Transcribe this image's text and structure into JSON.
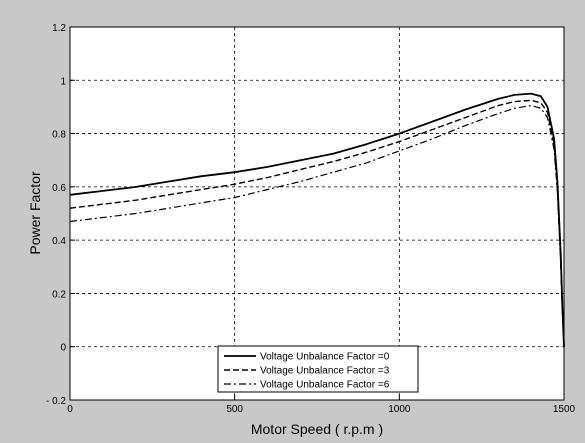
{
  "chart_data": {
    "type": "line",
    "title": "",
    "xlabel": "Motor Speed ( r.p.m )",
    "ylabel": "Power Factor",
    "xlim": [
      0,
      1500
    ],
    "ylim": [
      -0.2,
      1.2
    ],
    "xticks": [
      0,
      500,
      1000,
      1500
    ],
    "yticks": [
      -0.2,
      0,
      0.2,
      0.4,
      0.6,
      0.8,
      1,
      1.2
    ],
    "xtick_labels": [
      "0",
      "500",
      "1000",
      "1500"
    ],
    "ytick_labels": [
      "- 0.2",
      "0",
      "0.2",
      "0.4",
      "0.6",
      "0.8",
      "1",
      "1.2"
    ],
    "grid": true,
    "legend_position": "bottom-center",
    "series": [
      {
        "name": "Voltage Unbalance Factor =0",
        "line_style": "solid",
        "x": [
          0,
          100,
          200,
          300,
          400,
          500,
          600,
          700,
          800,
          900,
          1000,
          1100,
          1200,
          1300,
          1350,
          1400,
          1430,
          1450,
          1470,
          1480,
          1490,
          1495,
          1500
        ],
        "y": [
          0.57,
          0.585,
          0.6,
          0.62,
          0.64,
          0.655,
          0.675,
          0.7,
          0.725,
          0.76,
          0.8,
          0.845,
          0.89,
          0.93,
          0.945,
          0.95,
          0.94,
          0.9,
          0.78,
          0.62,
          0.35,
          0.15,
          0.0
        ]
      },
      {
        "name": "Voltage Unbalance Factor =3",
        "line_style": "dashed",
        "x": [
          0,
          100,
          200,
          300,
          400,
          500,
          600,
          700,
          800,
          900,
          1000,
          1100,
          1200,
          1300,
          1350,
          1400,
          1430,
          1450,
          1470,
          1480,
          1490,
          1495,
          1500
        ],
        "y": [
          0.52,
          0.535,
          0.55,
          0.57,
          0.59,
          0.61,
          0.635,
          0.665,
          0.695,
          0.73,
          0.77,
          0.815,
          0.86,
          0.905,
          0.92,
          0.925,
          0.915,
          0.88,
          0.76,
          0.6,
          0.33,
          0.14,
          0.0
        ]
      },
      {
        "name": "Voltage Unbalance Factor =6",
        "line_style": "dashdot",
        "x": [
          0,
          100,
          200,
          300,
          400,
          500,
          600,
          700,
          800,
          900,
          1000,
          1100,
          1200,
          1300,
          1350,
          1400,
          1430,
          1450,
          1470,
          1480,
          1490,
          1495,
          1500
        ],
        "y": [
          0.47,
          0.485,
          0.5,
          0.52,
          0.54,
          0.56,
          0.59,
          0.62,
          0.655,
          0.69,
          0.735,
          0.78,
          0.83,
          0.875,
          0.895,
          0.905,
          0.895,
          0.86,
          0.74,
          0.58,
          0.31,
          0.13,
          0.0
        ]
      }
    ]
  }
}
